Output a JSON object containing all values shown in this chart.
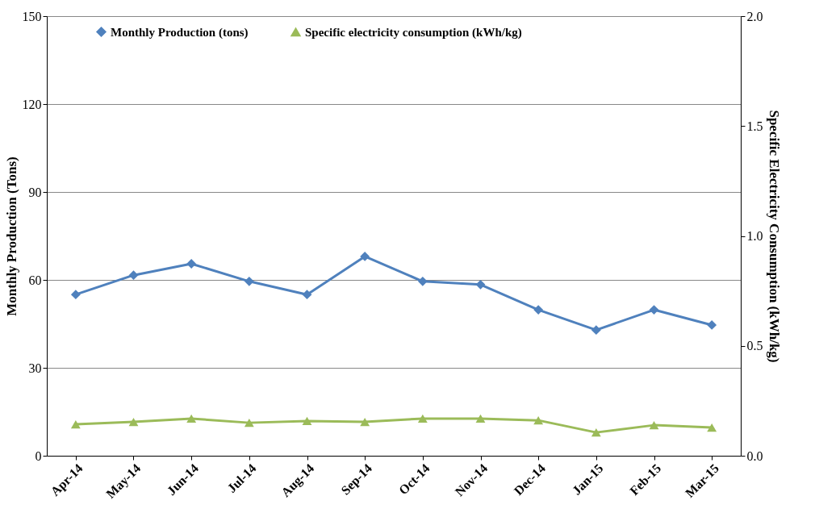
{
  "chart_data": {
    "type": "line",
    "ylabel": "Monthly Production (Tons)",
    "y2label": "Specific Electricity Consumption (kWh/kg)",
    "categories": [
      "Apr-14",
      "May-14",
      "Jun-14",
      "Jul-14",
      "Aug-14",
      "Sep-14",
      "Oct-14",
      "Nov-14",
      "Dec-14",
      "Jan-15",
      "Feb-15",
      "Mar-15"
    ],
    "series": [
      {
        "name": "Monthly Production (tons)",
        "color": "#4f81bd",
        "marker": "diamond",
        "values": [
          55.0,
          61.6,
          65.5,
          59.5,
          55.0,
          68.0,
          59.5,
          58.4,
          49.8,
          42.9,
          49.8,
          44.6
        ]
      },
      {
        "name": "Specific electricity consumption (kWh/kg)",
        "color": "#9bbb59",
        "marker": "triangle",
        "axis": "y2",
        "values": [
          0.143,
          0.154,
          0.169,
          0.15,
          0.158,
          0.154,
          0.169,
          0.169,
          0.161,
          0.106,
          0.139,
          0.128
        ]
      }
    ],
    "ylim": [
      0,
      150
    ],
    "yticks": [
      0,
      30,
      60,
      90,
      120,
      150
    ],
    "y2lim": [
      0,
      2.0
    ],
    "y2ticks": [
      {
        "value": 0,
        "label": "0.0"
      },
      {
        "value": 0.5,
        "label": "0.5"
      },
      {
        "value": 1.0,
        "label": "1.0"
      },
      {
        "value": 1.5,
        "label": "1.5"
      },
      {
        "value": 2.0,
        "label": "2.0"
      }
    ],
    "grid": "y",
    "legend": "top",
    "line_style": "solid"
  }
}
